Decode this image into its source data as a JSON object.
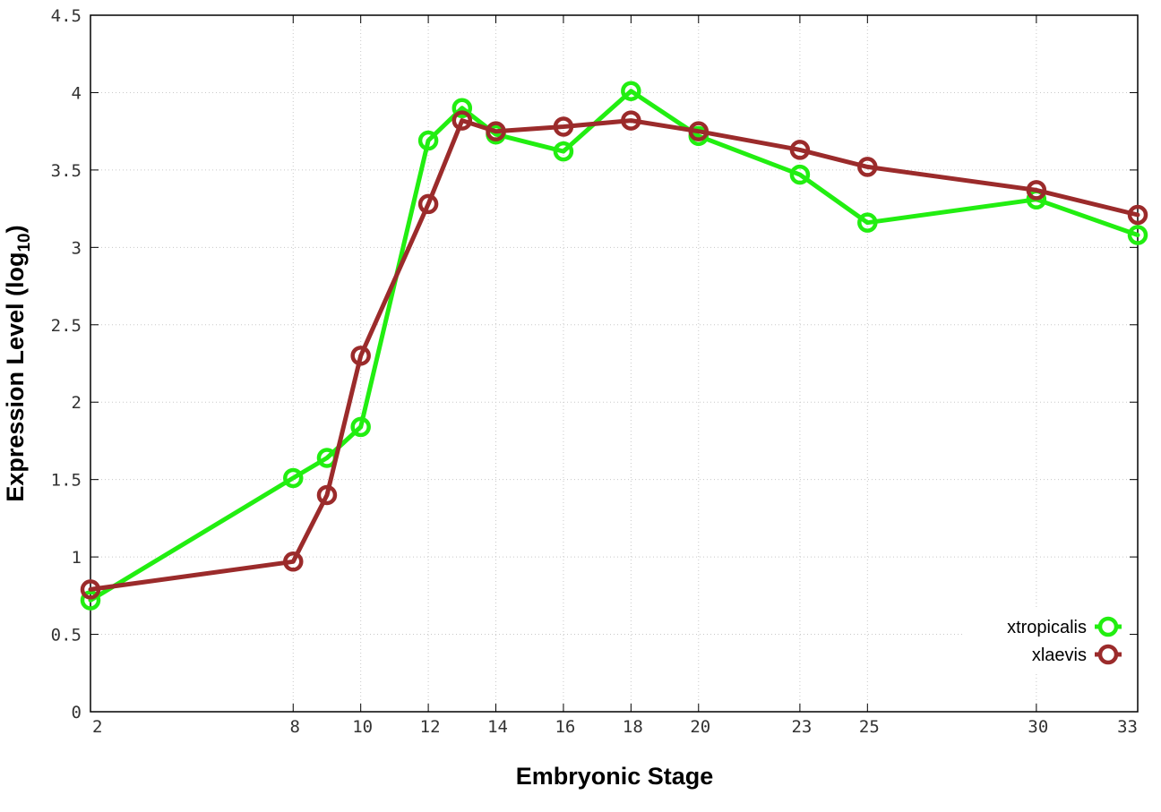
{
  "chart_data": {
    "type": "line",
    "x": [
      2,
      8,
      9,
      10,
      12,
      13,
      14,
      16,
      18,
      20,
      23,
      25,
      30,
      33
    ],
    "x_tick_labels": [
      "2",
      "8",
      "10",
      "12",
      "14",
      "16",
      "18",
      "20",
      "23",
      "25",
      "30",
      "33"
    ],
    "x_tick_values": [
      2,
      8,
      10,
      12,
      14,
      16,
      18,
      20,
      23,
      25,
      30,
      33
    ],
    "xlim": [
      2,
      33
    ],
    "ylim": [
      0,
      4.5
    ],
    "y_ticks": [
      0,
      0.5,
      1,
      1.5,
      2,
      2.5,
      3,
      3.5,
      4,
      4.5
    ],
    "y_tick_labels": [
      "0",
      "0.5",
      "1",
      "1.5",
      "2",
      "2.5",
      "3",
      "3.5",
      "4",
      "4.5"
    ],
    "xlabel": "Embryonic Stage",
    "ylabel_main": "Expression Level (log",
    "ylabel_sub": "10",
    "ylabel_close": ")",
    "grid": true,
    "legend_position": "bottom-right",
    "series": [
      {
        "name": "xtropicalis",
        "color": "#22ee11",
        "values": [
          0.72,
          1.51,
          1.64,
          1.84,
          3.69,
          3.9,
          3.73,
          3.62,
          4.01,
          3.72,
          3.47,
          3.16,
          3.31,
          3.08
        ]
      },
      {
        "name": "xlaevis",
        "color": "#9b2b2b",
        "values": [
          0.79,
          0.97,
          1.4,
          2.3,
          3.28,
          3.82,
          3.75,
          3.78,
          3.82,
          3.75,
          3.63,
          3.52,
          3.37,
          3.21
        ]
      }
    ]
  }
}
